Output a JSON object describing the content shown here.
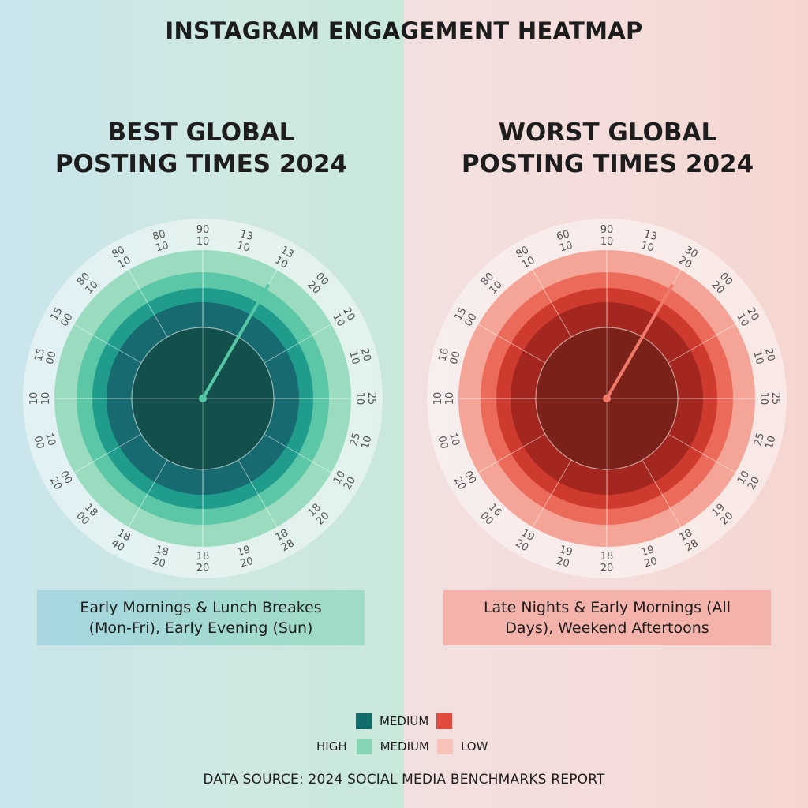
{
  "title": "INSTAGRAM ENGAGEMENT HEATMAP",
  "colors": {
    "best_high": "#126b6b",
    "best_medium": "#86d6b6",
    "worst_high": "#e14a3e",
    "worst_low": "#f7c2b8"
  },
  "chart_data": [
    {
      "type": "heatmap",
      "title": "BEST GLOBAL\nPOSTING TIMES 2024",
      "tick_labels": [
        [
          "90",
          "10"
        ],
        [
          "13",
          "10"
        ],
        [
          "13",
          "10"
        ],
        [
          "00",
          "20"
        ],
        [
          "20",
          "10"
        ],
        [
          "20",
          "10"
        ],
        [
          "25",
          "10"
        ],
        [
          "25",
          "10"
        ],
        [
          "10",
          "20"
        ],
        [
          "18",
          "20"
        ],
        [
          "18",
          "28"
        ],
        [
          "19",
          "20"
        ],
        [
          "18",
          "20"
        ],
        [
          "18",
          "20"
        ],
        [
          "18",
          "40"
        ],
        [
          "18",
          "00"
        ],
        [
          "00",
          "20"
        ],
        [
          "10",
          "00"
        ],
        [
          "10",
          "10"
        ],
        [
          "15",
          "00"
        ],
        [
          "15",
          "00"
        ],
        [
          "80",
          "10"
        ],
        [
          "80",
          "10"
        ],
        [
          "80",
          "10"
        ]
      ],
      "summary": "Early Mornings & Lunch Breakes (Mon-Fri), Early Evening (Sun)",
      "ring_colors": [
        "#134f4b",
        "#176a6f",
        "#1f9c8c",
        "#5cc7a7",
        "#9bdcc0",
        "rgba(255,255,255,0.45)"
      ],
      "pointer_color": "#55c7a5"
    },
    {
      "type": "heatmap",
      "title": "WORST GLOBAL\nPOSTING TIMES 2024",
      "tick_labels": [
        [
          "90",
          "10"
        ],
        [
          "13",
          "10"
        ],
        [
          "30",
          "20"
        ],
        [
          "00",
          "20"
        ],
        [
          "20",
          "10"
        ],
        [
          "20",
          "10"
        ],
        [
          "25",
          "10"
        ],
        [
          "25",
          "10"
        ],
        [
          "10",
          "20"
        ],
        [
          "19",
          "20"
        ],
        [
          "18",
          "28"
        ],
        [
          "19",
          "20"
        ],
        [
          "18",
          "20"
        ],
        [
          "19",
          "20"
        ],
        [
          "19",
          "20"
        ],
        [
          "16",
          "00"
        ],
        [
          "00",
          "20"
        ],
        [
          "10",
          "00"
        ],
        [
          "10",
          "10"
        ],
        [
          "16",
          "00"
        ],
        [
          "15",
          "00"
        ],
        [
          "80",
          "10"
        ],
        [
          "80",
          "10"
        ],
        [
          "60",
          "10"
        ]
      ],
      "summary": "Late Nights & Early Mornings (All Days), Weekend Aftertoons",
      "ring_colors": [
        "#7a2119",
        "#a3261f",
        "#cf3a2e",
        "#ec6a5a",
        "#f4a597",
        "rgba(255,255,255,0.45)"
      ],
      "pointer_color": "#ef7a6a"
    }
  ],
  "legend": {
    "row1_label": "MEDIUM",
    "row2_left_label": "HIGH",
    "row2_mid_label": "MEDIUM",
    "row2_right_label": "LOW"
  },
  "source": "DATA SOURCE: 2024 SOCIAL MEDIA BENCHMARKS REPORT"
}
